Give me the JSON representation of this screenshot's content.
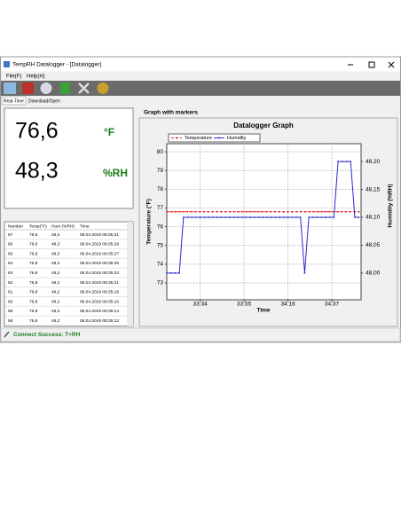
{
  "window": {
    "title": "TempRH Datalogger - [Datalogger]"
  },
  "menu": [
    "File(F)",
    "Help(H)"
  ],
  "tabs": [
    "Real-Time",
    "Download/Open"
  ],
  "readings": {
    "temperature": "76,6",
    "temperature_unit": "°F",
    "humidity": "48,3",
    "humidity_unit": "%RH"
  },
  "table": {
    "columns": [
      "Number",
      "Temp(°F)",
      "Hum (%RH)",
      "Time"
    ],
    "rows": [
      [
        "67",
        "76,6",
        "48,3",
        "06.04.2019 09:35:31"
      ],
      [
        "66",
        "76,6",
        "48,3",
        "06.04.2019 09:35:29"
      ],
      [
        "65",
        "76,8",
        "48,3",
        "06.04.2019 09:35:27"
      ],
      [
        "64",
        "76,8",
        "48,2",
        "06.04.2019 09:35:25"
      ],
      [
        "63",
        "76,8",
        "48,2",
        "06.04.2019 09:35:23"
      ],
      [
        "62",
        "76,8",
        "48,2",
        "06.04.2019 09:35:21"
      ],
      [
        "61",
        "76,8",
        "48,2",
        "06.04.2019 09:35:18"
      ],
      [
        "60",
        "76,8",
        "48,2",
        "06.04.2019 09:35:16"
      ],
      [
        "59",
        "76,8",
        "48,2",
        "06.04.2019 09:35:14"
      ],
      [
        "58",
        "76,8",
        "48,2",
        "06.04.2019 09:35:12"
      ]
    ]
  },
  "graph_panel": {
    "title": "Graph with markers"
  },
  "chart_data": {
    "type": "line",
    "title": "Datalogger Graph",
    "x_label": "Time",
    "y_label": "Temperature (°F)",
    "y2_label": "Humidity (%RH)",
    "x": [
      1998,
      2000,
      2002,
      2004,
      2006,
      2008,
      2010,
      2012,
      2014,
      2016,
      2018,
      2020,
      2022,
      2024,
      2026,
      2028,
      2030,
      2032,
      2034,
      2036,
      2038,
      2040,
      2042,
      2044,
      2046,
      2048,
      2050,
      2052,
      2054,
      2056,
      2058,
      2060,
      2062,
      2064,
      2066,
      2068,
      2070,
      2072,
      2074,
      2076,
      2078,
      2080,
      2082,
      2084,
      2086,
      2088,
      2090
    ],
    "xlim": [
      1998,
      2091
    ],
    "xticks": [
      {
        "value": 2014,
        "label": "33:34"
      },
      {
        "value": 2035,
        "label": "33:55"
      },
      {
        "value": 2056,
        "label": "34:16"
      },
      {
        "value": 2077,
        "label": "34:37"
      }
    ],
    "ylim": [
      72.1,
      80.43
    ],
    "yticks": [
      73,
      74,
      75,
      76,
      77,
      78,
      79,
      80
    ],
    "y2lim": [
      47.952,
      48.232
    ],
    "y2ticks": [
      {
        "value": 48.0,
        "label": "48,00"
      },
      {
        "value": 48.05,
        "label": "48,05"
      },
      {
        "value": 48.1,
        "label": "48,10"
      },
      {
        "value": 48.15,
        "label": "48,15"
      },
      {
        "value": 48.2,
        "label": "48,20"
      }
    ],
    "grid": true,
    "legend": "top-left",
    "series": [
      {
        "name": "Temperature",
        "color": "#e02020",
        "line_style": "dashed",
        "markers": true,
        "values": [
          76.8,
          76.8,
          76.8,
          76.8,
          76.8,
          76.8,
          76.8,
          76.8,
          76.8,
          76.8,
          76.8,
          76.8,
          76.8,
          76.8,
          76.8,
          76.8,
          76.8,
          76.8,
          76.8,
          76.8,
          76.8,
          76.8,
          76.8,
          76.8,
          76.8,
          76.8,
          76.8,
          76.8,
          76.8,
          76.8,
          76.8,
          76.8,
          76.8,
          76.8,
          76.8,
          76.8,
          76.8,
          76.8,
          76.8,
          76.8,
          76.8,
          76.8,
          76.8,
          76.8,
          76.8,
          76.8,
          76.8
        ]
      },
      {
        "name": "Humidity",
        "color": "#2a2ad0",
        "axis": "y2",
        "line_style": "solid",
        "markers": true,
        "values": [
          48.0,
          48.0,
          48.0,
          48.0,
          48.1,
          48.1,
          48.1,
          48.1,
          48.1,
          48.1,
          48.1,
          48.1,
          48.1,
          48.1,
          48.1,
          48.1,
          48.1,
          48.1,
          48.1,
          48.1,
          48.1,
          48.1,
          48.1,
          48.1,
          48.1,
          48.1,
          48.1,
          48.1,
          48.1,
          48.1,
          48.1,
          48.1,
          48.1,
          48.0,
          48.1,
          48.1,
          48.1,
          48.1,
          48.1,
          48.1,
          48.1,
          48.2,
          48.2,
          48.2,
          48.2,
          48.1,
          48.1
        ]
      }
    ]
  },
  "status": "Connect Success: T+RH"
}
